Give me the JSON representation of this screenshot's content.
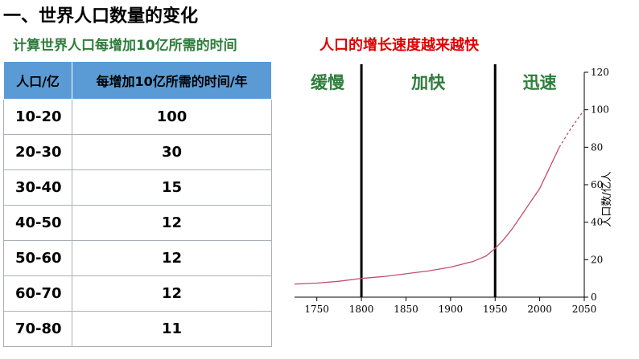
{
  "page": {
    "title": "一、世界人口数量的变化",
    "subtitle": "计算世界人口每增加10亿所需的时间",
    "headline": "人口的增长速度越来越快"
  },
  "table": {
    "headers": [
      "人口/亿",
      "每增加10亿所需的时间/年"
    ],
    "rows": [
      [
        "10-20",
        "100"
      ],
      [
        "20-30",
        "30"
      ],
      [
        "30-40",
        "15"
      ],
      [
        "40-50",
        "12"
      ],
      [
        "50-60",
        "12"
      ],
      [
        "60-70",
        "12"
      ],
      [
        "70-80",
        "11"
      ]
    ]
  },
  "colors": {
    "curve": "#c0506a",
    "phase_text": "#2e7d3c",
    "headline": "#e00000",
    "table_header": "#5b9bd5"
  },
  "chart_data": {
    "type": "line",
    "title": "",
    "xlabel": "",
    "ylabel": "人口数/亿人",
    "xlim": [
      1725,
      2050
    ],
    "ylim": [
      0,
      120
    ],
    "x_ticks": [
      1750,
      1800,
      1850,
      1900,
      1950,
      2000,
      2050
    ],
    "y_ticks": [
      0,
      20,
      40,
      60,
      80,
      100,
      120
    ],
    "y_axis_side": "right",
    "grid": false,
    "series": [
      {
        "style": "solid",
        "x": [
          1725,
          1750,
          1775,
          1800,
          1825,
          1850,
          1875,
          1900,
          1925,
          1940,
          1950,
          1960,
          1970,
          1980,
          1990,
          2000,
          2010,
          2022
        ],
        "y": [
          7,
          7.5,
          8.5,
          10,
          11,
          12.5,
          14,
          16,
          19,
          22,
          26,
          31,
          37,
          44,
          51,
          58,
          68,
          80
        ]
      },
      {
        "style": "dashed",
        "x": [
          2022,
          2035,
          2050
        ],
        "y": [
          80,
          90,
          100
        ]
      }
    ],
    "dividers": [
      1800,
      1950
    ],
    "phases": [
      {
        "label": "缓慢",
        "x": 1762
      },
      {
        "label": "加快",
        "x": 1875
      },
      {
        "label": "迅速",
        "x": 2000
      }
    ]
  }
}
